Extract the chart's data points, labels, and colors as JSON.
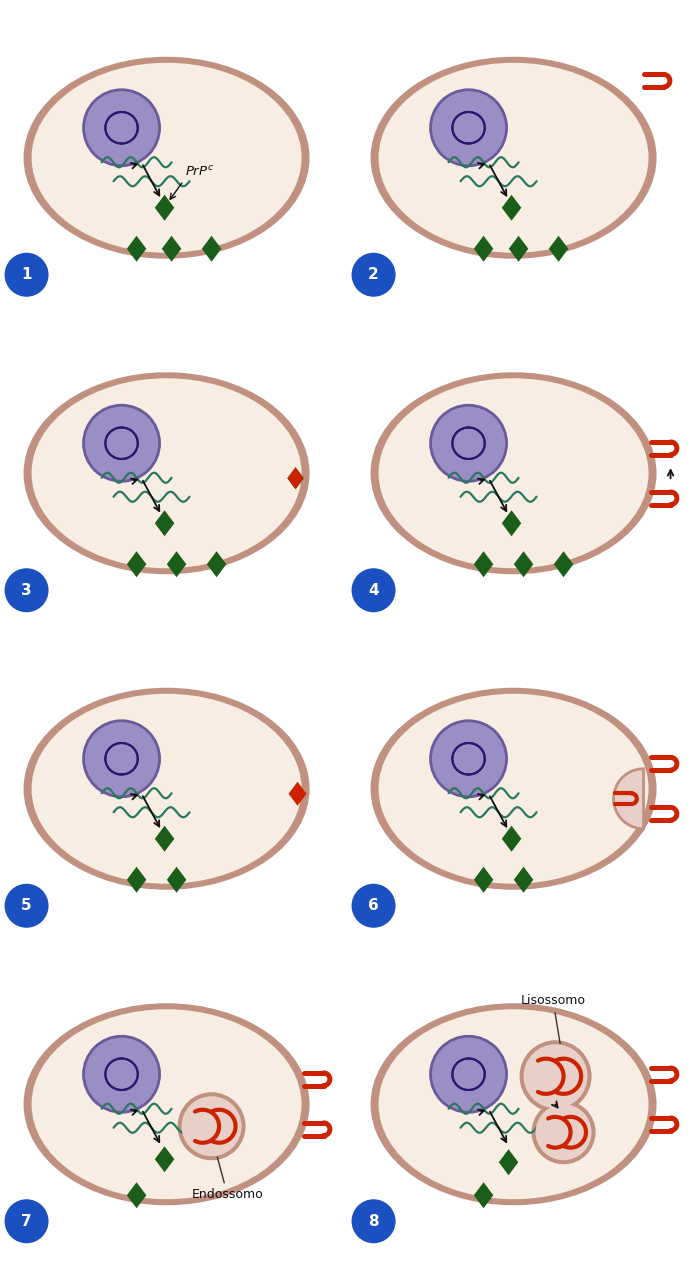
{
  "bg_color": "#ffffff",
  "cell_fill": "#f7ede2",
  "cell_border": "#c09080",
  "nucleus_fill": "#9b8ec4",
  "nucleus_border": "#6a5a9a",
  "dna_color": "#2a1870",
  "mrna_color": "#2a7860",
  "prpc_green": "#1a5e1a",
  "prpsc_red": "#cc2200",
  "endosome_fill": "#e8d0c8",
  "endosome_border": "#b08070",
  "num_circle_color": "#1a50c0",
  "arrow_color": "#111111",
  "label_color": "#111111",
  "figw": 6.94,
  "figh": 12.62,
  "dpi": 100,
  "panels": [
    {
      "num": "1",
      "col": 0,
      "row": 0
    },
    {
      "num": "2",
      "col": 1,
      "row": 0
    },
    {
      "num": "3",
      "col": 0,
      "row": 1
    },
    {
      "num": "4",
      "col": 1,
      "row": 1
    },
    {
      "num": "5",
      "col": 0,
      "row": 2
    },
    {
      "num": "6",
      "col": 1,
      "row": 2
    },
    {
      "num": "7",
      "col": 0,
      "row": 3
    },
    {
      "num": "8",
      "col": 1,
      "row": 3
    }
  ]
}
